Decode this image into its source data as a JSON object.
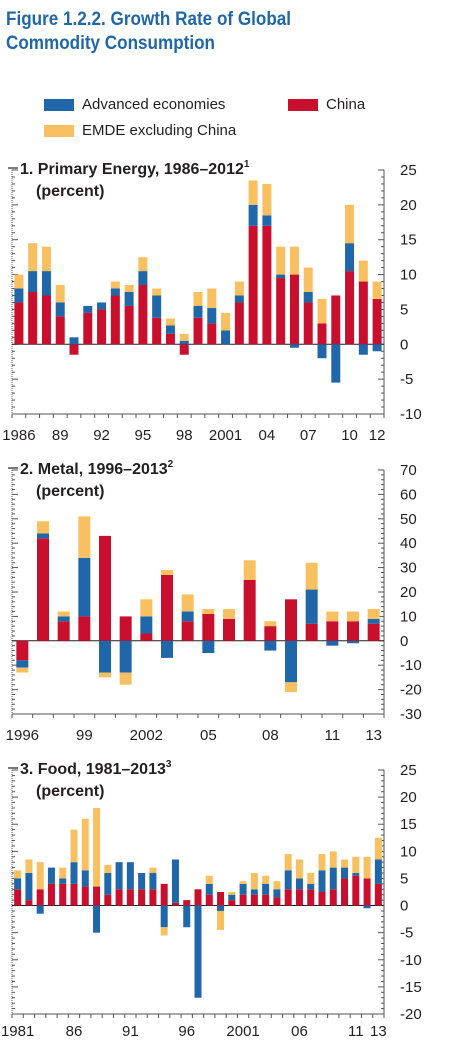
{
  "figure": {
    "title_line1": "Figure 1.2.2.  Growth Rate of Global",
    "title_line2": "Commodity Consumption"
  },
  "legend": [
    {
      "name": "Advanced economies",
      "color": "#1f67a8"
    },
    {
      "name": "China",
      "color": "#c8102e"
    },
    {
      "name": "EMDE excluding China",
      "color": "#f8c060"
    }
  ],
  "chart_data": [
    {
      "type": "bar",
      "stacked": true,
      "title": "1. Primary Energy, 1986–2012",
      "title_sup": "1",
      "subtitle": "(percent)",
      "ylim": [
        -10,
        25
      ],
      "yticks": [
        "-10",
        "-5",
        "0",
        "5",
        "10",
        "15",
        "20",
        "25"
      ],
      "x_labels": [
        "1986",
        "89",
        "92",
        "95",
        "98",
        "2001",
        "04",
        "07",
        "10",
        "12"
      ],
      "categories": [
        "1986",
        "1987",
        "1988",
        "1989",
        "1990",
        "1991",
        "1992",
        "1993",
        "1994",
        "1995",
        "1996",
        "1997",
        "1998",
        "1999",
        "2000",
        "2001",
        "2002",
        "2003",
        "2004",
        "2005",
        "2006",
        "2007",
        "2008",
        "2009",
        "2010",
        "2011",
        "2012"
      ],
      "series": [
        {
          "name": "China",
          "values": [
            6,
            7.5,
            7,
            4,
            -1.5,
            4.5,
            5,
            7,
            5.5,
            8.5,
            3.8,
            1.5,
            -1.5,
            3.8,
            3,
            0,
            6,
            17,
            17,
            9.5,
            10,
            6,
            3,
            7,
            10.5,
            9,
            6.5
          ]
        },
        {
          "name": "Advanced economies",
          "values": [
            2,
            3,
            3.5,
            2,
            1,
            1,
            1,
            1,
            2,
            2,
            3.2,
            1.2,
            0.5,
            1.7,
            2.2,
            2,
            1,
            3,
            1.5,
            0.5,
            -0.5,
            1.5,
            -2,
            -5.5,
            4,
            -1.5,
            -1
          ]
        },
        {
          "name": "EMDE excluding China",
          "values": [
            2,
            4,
            3.5,
            2.5,
            0,
            0,
            0,
            1,
            1,
            2,
            1,
            1,
            1,
            2,
            2.8,
            2.5,
            2,
            3.5,
            4.5,
            4,
            4,
            3.5,
            3.5,
            0,
            5.5,
            3,
            2.5
          ]
        }
      ]
    },
    {
      "type": "bar",
      "stacked": true,
      "title": "2. Metal, 1996–2013",
      "title_sup": "2",
      "subtitle": "(percent)",
      "ylim": [
        -30,
        70
      ],
      "yticks": [
        "-30",
        "-20",
        "-10",
        "0",
        "10",
        "20",
        "30",
        "40",
        "50",
        "60",
        "70"
      ],
      "x_labels": [
        "1996",
        "99",
        "2002",
        "05",
        "08",
        "11",
        "13"
      ],
      "categories": [
        "1996",
        "1997",
        "1998",
        "1999",
        "2000",
        "2001",
        "2002",
        "2003",
        "2004",
        "2005",
        "2006",
        "2007",
        "2008",
        "2009",
        "2010",
        "2011",
        "2012",
        "2013"
      ],
      "series": [
        {
          "name": "China",
          "values": [
            -8,
            42,
            8,
            10,
            43,
            10,
            3,
            27,
            8,
            11,
            9,
            25,
            6,
            17,
            7,
            8,
            8,
            7
          ]
        },
        {
          "name": "Advanced economies",
          "values": [
            -3,
            2,
            2,
            24,
            -13,
            -13,
            7,
            -7,
            4,
            -5,
            0,
            0,
            -4,
            -17,
            14,
            -2,
            -1,
            2
          ]
        },
        {
          "name": "EMDE excluding China",
          "values": [
            -2,
            5,
            2,
            17,
            -2,
            -5,
            7,
            2,
            7,
            2,
            4,
            8,
            2,
            -4,
            11,
            4,
            4,
            4
          ]
        }
      ]
    },
    {
      "type": "bar",
      "stacked": true,
      "title": "3. Food, 1981–2013",
      "title_sup": "3",
      "subtitle": "(percent)",
      "ylim": [
        -20,
        25
      ],
      "yticks": [
        "-20",
        "-15",
        "-10",
        "-5",
        "0",
        "5",
        "10",
        "15",
        "20",
        "25"
      ],
      "x_labels": [
        "1981",
        "86",
        "91",
        "96",
        "2001",
        "06",
        "11",
        "13"
      ],
      "categories": [
        "1981",
        "1982",
        "1983",
        "1984",
        "1985",
        "1986",
        "1987",
        "1988",
        "1989",
        "1990",
        "1991",
        "1992",
        "1993",
        "1994",
        "1995",
        "1996",
        "1997",
        "1998",
        "1999",
        "2000",
        "2001",
        "2002",
        "2003",
        "2004",
        "2005",
        "2006",
        "2007",
        "2008",
        "2009",
        "2010",
        "2011",
        "2012",
        "2013"
      ],
      "series": [
        {
          "name": "China",
          "values": [
            3,
            1,
            3,
            4,
            4,
            4,
            3.5,
            3.5,
            2,
            3,
            3,
            3,
            3,
            4,
            0.5,
            1,
            3,
            2,
            2.5,
            1,
            2,
            2,
            2,
            1.5,
            3,
            3,
            3,
            2.5,
            3,
            5,
            5.5,
            5,
            4
          ]
        },
        {
          "name": "Advanced economies",
          "values": [
            2,
            5,
            -1.5,
            3,
            1,
            4,
            3,
            -5,
            4,
            5,
            5,
            3,
            3,
            -4,
            8,
            -4,
            -17,
            2,
            -1,
            1,
            2,
            1,
            2,
            1.5,
            3.5,
            2,
            1,
            4,
            4,
            2,
            0.5,
            -0.5,
            4.5
          ]
        },
        {
          "name": "EMDE excluding China",
          "values": [
            1.5,
            2.5,
            5,
            0,
            2,
            6,
            9.5,
            14.5,
            1.5,
            0,
            0,
            0,
            1,
            -1.5,
            0,
            0,
            0,
            1.5,
            -3.5,
            0.5,
            0.5,
            3,
            1.5,
            1.5,
            3,
            3.5,
            2,
            3,
            3,
            1.5,
            3,
            4,
            4
          ]
        }
      ]
    }
  ]
}
